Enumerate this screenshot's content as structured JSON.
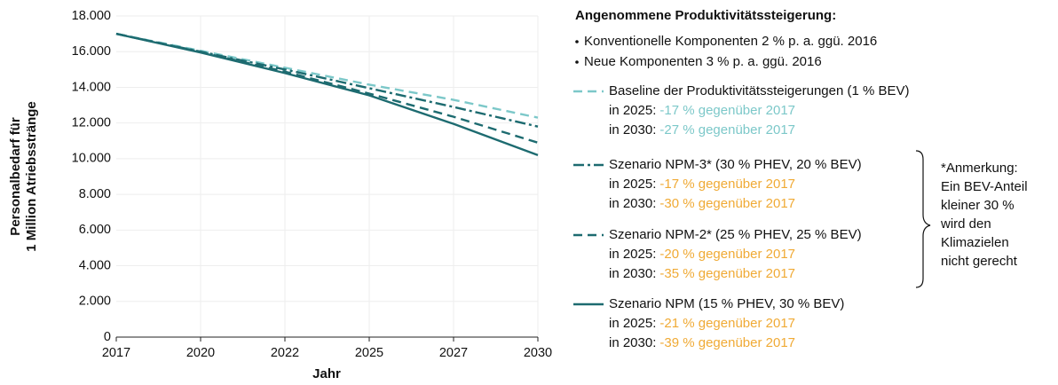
{
  "chart_data": {
    "type": "line",
    "xlabel": "Jahr",
    "ylabel": [
      "Personalbedarf für",
      "1 Million Atriebsstränge"
    ],
    "x": [
      2017,
      2019.6,
      2022.2,
      2024.8,
      2027.4,
      2030
    ],
    "xlim": [
      2017,
      2030
    ],
    "xticks": [
      2017,
      {
        "value": 2019.6,
        "label": "2020"
      },
      {
        "value": 2022.2,
        "label": "2022"
      },
      {
        "value": 2024.8,
        "label": "2025"
      },
      {
        "value": 2027.4,
        "label": "2027"
      },
      2030
    ],
    "ylim": [
      0,
      18000
    ],
    "yticks": [
      0,
      {
        "value": 2000,
        "label": "2.000"
      },
      {
        "value": 4000,
        "label": "4.000"
      },
      {
        "value": 6000,
        "label": "6.000"
      },
      {
        "value": 8000,
        "label": "8.000"
      },
      {
        "value": 10000,
        "label": "10.000"
      },
      {
        "value": 12000,
        "label": "12.000"
      },
      {
        "value": 14000,
        "label": "14.000"
      },
      {
        "value": 16000,
        "label": "16.000"
      },
      {
        "value": 18000,
        "label": "18.000"
      }
    ],
    "grid": true,
    "legend_title": "Angenommene Produktivitätssteigerung:",
    "legend_bullets": [
      "Konventionelle Komponenten 2 % p. a. ggü. 2016",
      "Neue Komponenten 3 % p. a. ggü. 2016"
    ],
    "series": [
      {
        "name": "Baseline der Produktivitätssteigerungen (1 % BEV)",
        "color": "#7cc8c9",
        "dash": "dashed",
        "note_color": "#7cc8c9",
        "values": [
          17000,
          16050,
          15100,
          14150,
          13300,
          12300
        ],
        "notes": [
          {
            "label": "in 2025:",
            "text": "-17 % gegenüber 2017"
          },
          {
            "label": "in 2030:",
            "text": "-27 % gegenüber 2017"
          }
        ]
      },
      {
        "name": "Szenario NPM-3* (30 % PHEV, 20 % BEV)",
        "color": "#1d6b70",
        "dash": "dashdot",
        "note_color": "#f0aa35",
        "values": [
          17000,
          16000,
          15000,
          13950,
          12900,
          11800
        ],
        "notes": [
          {
            "label": "in 2025:",
            "text": "-17 % gegenüber 2017"
          },
          {
            "label": "in 2030:",
            "text": "-30 % gegenüber 2017"
          }
        ]
      },
      {
        "name": "Szenario NPM-2* (25 % PHEV, 25 % BEV)",
        "color": "#1d6b70",
        "dash": "dashed",
        "note_color": "#f0aa35",
        "values": [
          17000,
          15980,
          14880,
          13650,
          12350,
          10900
        ],
        "notes": [
          {
            "label": "in 2025:",
            "text": "-20 % gegenüber 2017"
          },
          {
            "label": "in 2030:",
            "text": "-35 % gegenüber 2017"
          }
        ]
      },
      {
        "name": "Szenario NPM  (15 % PHEV, 30 % BEV)",
        "color": "#1d6b70",
        "dash": "solid",
        "note_color": "#f0aa35",
        "values": [
          17000,
          15950,
          14800,
          13550,
          11950,
          10200
        ],
        "notes": [
          {
            "label": "in 2025:",
            "text": "-21 % gegenüber 2017"
          },
          {
            "label": "in 2030:",
            "text": "-39 % gegenüber 2017"
          }
        ]
      }
    ],
    "footnote": [
      "*Anmerkung:",
      "Ein BEV-Anteil",
      "kleiner 30 %",
      "wird den",
      "Klimazielen",
      "nicht gerecht"
    ]
  }
}
